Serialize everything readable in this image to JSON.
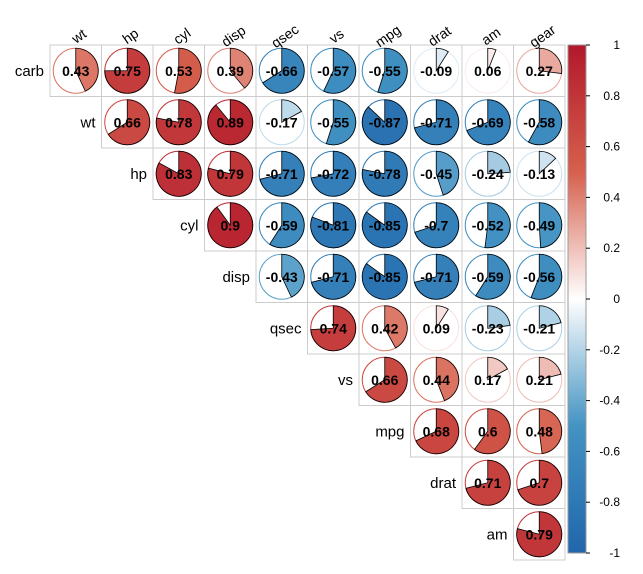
{
  "chart_data": {
    "type": "correlation-pie-matrix",
    "variables": [
      "carb",
      "wt",
      "hp",
      "cyl",
      "disp",
      "qsec",
      "vs",
      "mpg",
      "drat",
      "am",
      "gear"
    ],
    "column_labels": [
      "wt",
      "hp",
      "cyl",
      "disp",
      "qsec",
      "vs",
      "mpg",
      "drat",
      "am",
      "gear"
    ],
    "row_labels": [
      "carb",
      "wt",
      "hp",
      "cyl",
      "disp",
      "qsec",
      "vs",
      "mpg",
      "drat",
      "am"
    ],
    "correlations": [
      [
        0.43,
        0.75,
        0.53,
        0.39,
        -0.66,
        -0.57,
        -0.55,
        -0.09,
        0.06,
        0.27
      ],
      [
        0.66,
        0.78,
        0.89,
        -0.17,
        -0.55,
        -0.87,
        -0.71,
        -0.69,
        -0.58
      ],
      [
        0.83,
        0.79,
        -0.71,
        -0.72,
        -0.78,
        -0.45,
        -0.24,
        -0.13
      ],
      [
        0.9,
        -0.59,
        -0.81,
        -0.85,
        -0.7,
        -0.52,
        -0.49
      ],
      [
        -0.43,
        -0.71,
        -0.85,
        -0.71,
        -0.59,
        -0.56
      ],
      [
        0.74,
        0.42,
        0.09,
        -0.23,
        -0.21
      ],
      [
        0.66,
        0.44,
        0.17,
        0.21
      ],
      [
        0.68,
        0.6,
        0.48
      ],
      [
        0.71,
        0.7
      ],
      [
        0.79
      ]
    ],
    "colorbar": {
      "range": [
        -1,
        1
      ],
      "ticks": [
        1,
        0.8,
        0.6,
        0.4,
        0.2,
        0,
        -0.2,
        -0.4,
        -0.6,
        -0.8,
        -1
      ],
      "tick_labels": [
        "1",
        "0.8",
        "0.6",
        "0.4",
        "0.2",
        "0",
        "-0.2",
        "-0.4",
        "-0.6",
        "-0.8",
        "-1"
      ],
      "colors": {
        "negative": "#2166AC",
        "low": "#4393C3",
        "mid": "#FFFFFF",
        "high": "#D6604D",
        "positive": "#B2182B"
      }
    }
  }
}
